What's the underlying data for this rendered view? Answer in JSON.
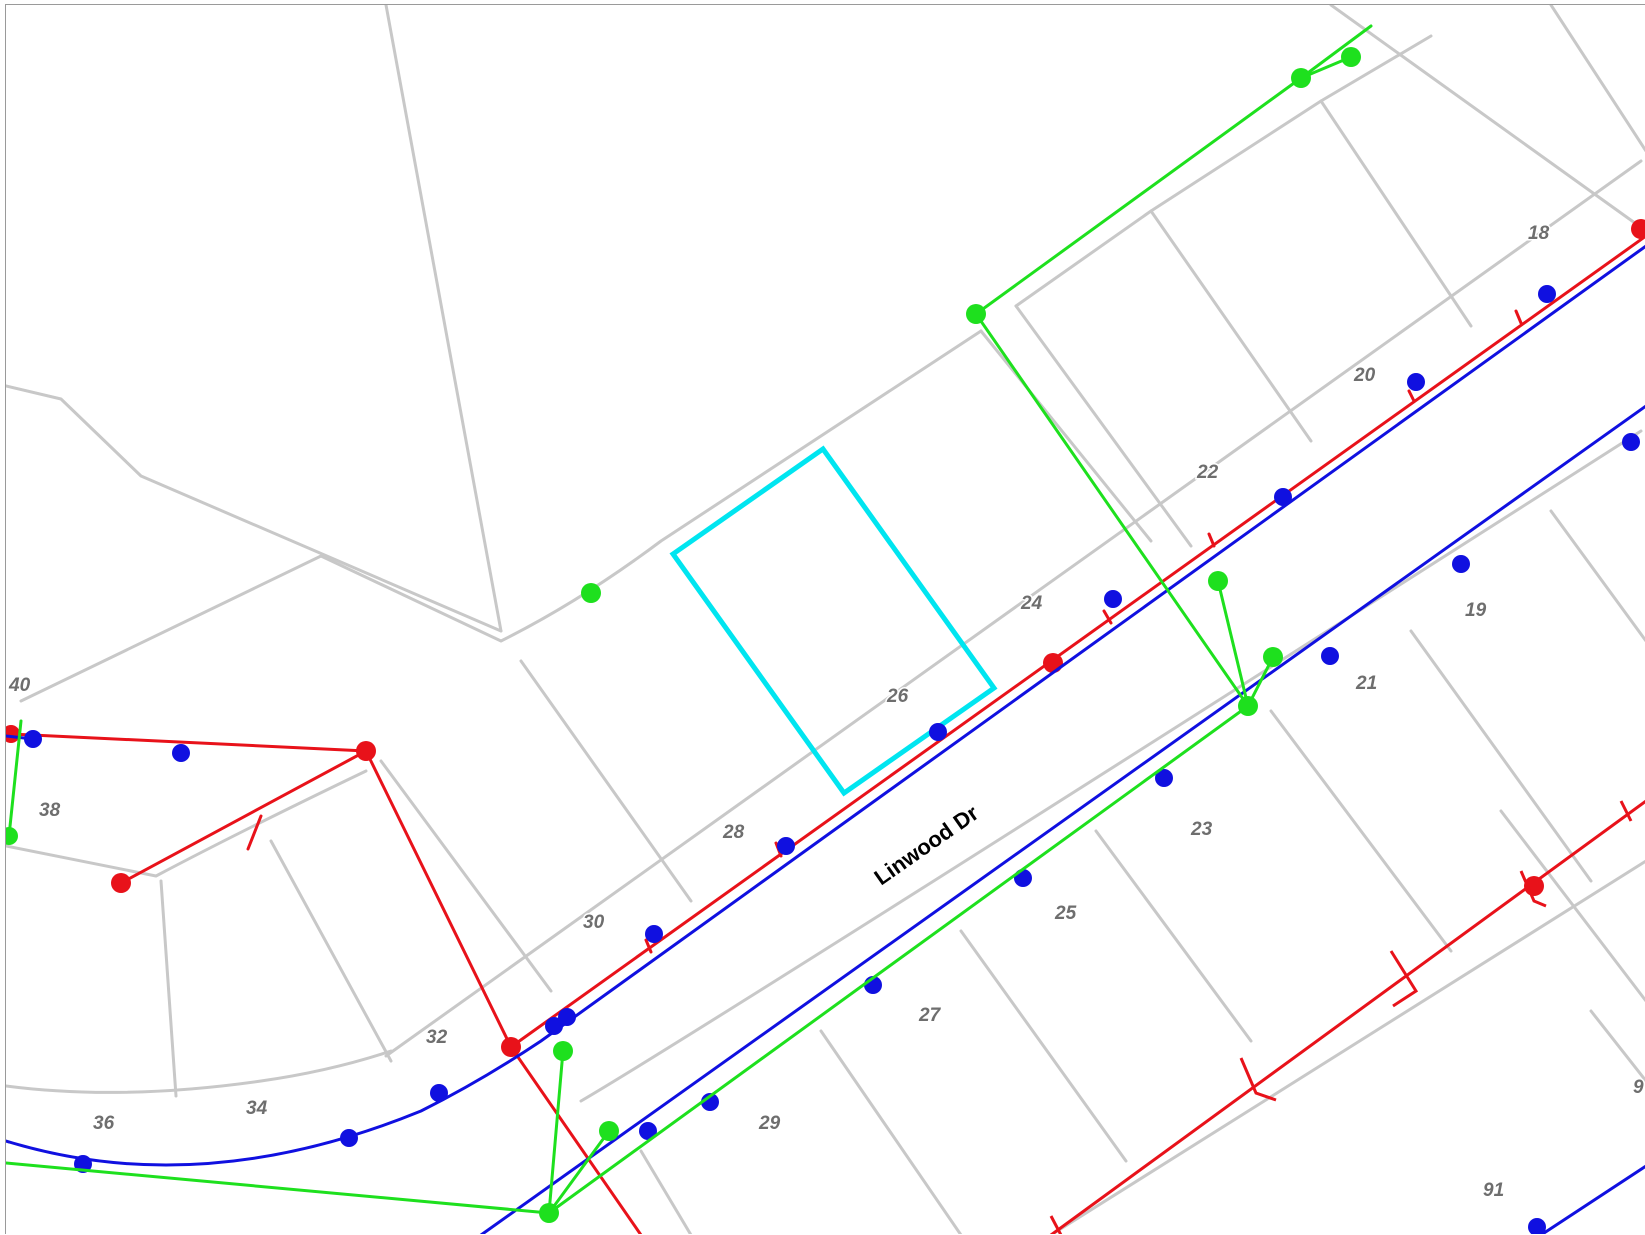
{
  "map": {
    "street_name": "Linwood Dr",
    "lot_numbers": [
      "18",
      "19",
      "20",
      "21",
      "22",
      "23",
      "24",
      "25",
      "26",
      "27",
      "28",
      "29",
      "30",
      "32",
      "34",
      "36",
      "38",
      "40",
      "91",
      "9"
    ],
    "highlighted_parcel": "26",
    "colors": {
      "parcel_lines": "#c8c8c8",
      "highlight": "#00e5f0",
      "red_network": "#e8121a",
      "blue_network": "#1010e0",
      "green_network": "#1ee01e",
      "lot_label": "#6e6e6e",
      "street_label": "#000000"
    },
    "layers": [
      "parcels",
      "red-network",
      "blue-network",
      "green-network"
    ]
  }
}
